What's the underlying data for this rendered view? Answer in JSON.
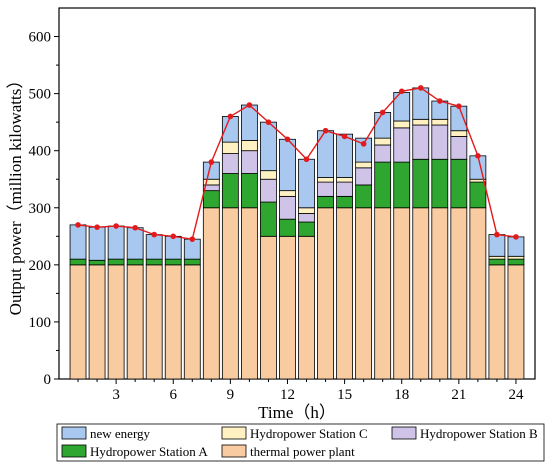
{
  "chart_data": {
    "type": "bar",
    "stacked": true,
    "xlabel": "Time（h）",
    "ylabel": "Output power（million kilowatts）",
    "x": [
      1,
      2,
      3,
      4,
      5,
      6,
      7,
      8,
      9,
      10,
      11,
      12,
      13,
      14,
      15,
      16,
      17,
      18,
      19,
      20,
      21,
      22,
      23,
      24
    ],
    "xticks": [
      3,
      6,
      9,
      12,
      15,
      18,
      21,
      24
    ],
    "xlim": [
      0,
      25
    ],
    "ylim": [
      0,
      650
    ],
    "yticks": [
      0,
      100,
      200,
      300,
      400,
      500,
      600
    ],
    "grid": false,
    "legend_position": "bottom",
    "series": [
      {
        "name": "thermal power plant",
        "color": "#f8ccA0",
        "values": [
          200,
          200,
          200,
          200,
          200,
          200,
          200,
          300,
          300,
          300,
          250,
          250,
          250,
          300,
          300,
          300,
          300,
          300,
          300,
          300,
          300,
          300,
          200,
          200
        ]
      },
      {
        "name": "Hydropower Station A",
        "color": "#2fa62f",
        "values": [
          10,
          8,
          10,
          10,
          10,
          10,
          10,
          30,
          60,
          60,
          60,
          30,
          25,
          20,
          20,
          40,
          80,
          80,
          85,
          85,
          85,
          45,
          10,
          10
        ]
      },
      {
        "name": "Hydropower Station B",
        "color": "#cfc4e8",
        "values": [
          0,
          0,
          0,
          0,
          0,
          0,
          0,
          10,
          35,
          40,
          40,
          40,
          15,
          25,
          25,
          30,
          30,
          60,
          60,
          60,
          40,
          0,
          0,
          0
        ]
      },
      {
        "name": "Hydropower Station C",
        "color": "#fff1c2",
        "values": [
          0,
          0,
          0,
          0,
          0,
          0,
          0,
          10,
          20,
          18,
          15,
          10,
          10,
          8,
          8,
          10,
          12,
          12,
          10,
          10,
          10,
          5,
          5,
          5
        ]
      },
      {
        "name": "new energy",
        "color": "#a8c8f0",
        "values": [
          60,
          58,
          58,
          55,
          43,
          40,
          35,
          30,
          45,
          62,
          85,
          90,
          85,
          82,
          76,
          42,
          45,
          50,
          55,
          32,
          43,
          41,
          38,
          34
        ]
      }
    ],
    "line": {
      "color": "#e31a1c",
      "values": [
        270,
        266,
        268,
        265,
        253,
        250,
        245,
        380,
        460,
        480,
        450,
        420,
        385,
        435,
        425,
        412,
        467,
        504,
        510,
        487,
        478,
        391,
        253,
        249
      ]
    }
  }
}
